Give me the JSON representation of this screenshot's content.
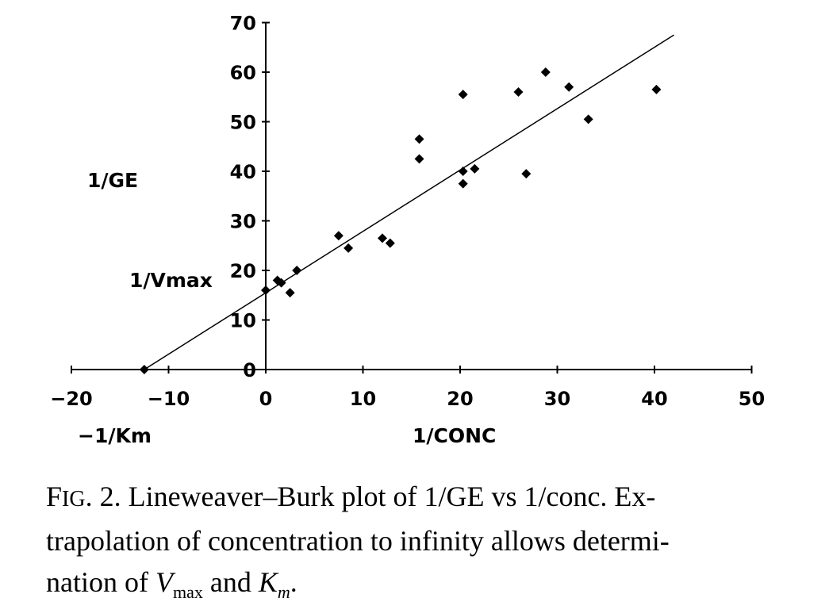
{
  "chart_data": {
    "type": "scatter",
    "xlabel": "1/CONC",
    "ylabel": "1/GE",
    "xlim": [
      -20,
      50
    ],
    "ylim": [
      0,
      70
    ],
    "x_ticks": [
      -20,
      -10,
      0,
      10,
      20,
      30,
      40,
      50
    ],
    "y_ticks": [
      0,
      10,
      20,
      30,
      40,
      50,
      60,
      70
    ],
    "annotations": {
      "intercept_y": "1/Vmax",
      "intercept_x": "−1/Km"
    },
    "points": [
      {
        "x": -12.5,
        "y": 0
      },
      {
        "x": 0,
        "y": 16
      },
      {
        "x": 1.2,
        "y": 18
      },
      {
        "x": 1.6,
        "y": 17.5
      },
      {
        "x": 2.5,
        "y": 15.5
      },
      {
        "x": 3.2,
        "y": 20
      },
      {
        "x": 7.5,
        "y": 27
      },
      {
        "x": 8.5,
        "y": 24.5
      },
      {
        "x": 12,
        "y": 26.5
      },
      {
        "x": 12.8,
        "y": 25.5
      },
      {
        "x": 15.8,
        "y": 46.5
      },
      {
        "x": 15.8,
        "y": 42.5
      },
      {
        "x": 20.3,
        "y": 55.5
      },
      {
        "x": 20.3,
        "y": 40
      },
      {
        "x": 20.3,
        "y": 37.5
      },
      {
        "x": 21.5,
        "y": 40.5
      },
      {
        "x": 26,
        "y": 56
      },
      {
        "x": 26.8,
        "y": 39.5
      },
      {
        "x": 28.8,
        "y": 60
      },
      {
        "x": 31.2,
        "y": 57
      },
      {
        "x": 33.2,
        "y": 50.5
      },
      {
        "x": 40.2,
        "y": 56.5
      }
    ],
    "fit_line": {
      "x": [
        -12.5,
        42
      ],
      "y": [
        0,
        67.5
      ]
    }
  },
  "caption": {
    "fig_label": "F",
    "fig_label_small": "IG",
    "line1_rest": ". 2. Lineweaver–Burk plot of 1/GE vs 1/conc. Ex-",
    "line2": "trapolation of concentration to infinity allows determi-",
    "line3_pre": "nation of ",
    "vmax_base": "V",
    "vmax_sub": "max",
    "line3_mid": " and ",
    "km_base": "K",
    "km_sub": "m",
    "line3_end": "."
  }
}
